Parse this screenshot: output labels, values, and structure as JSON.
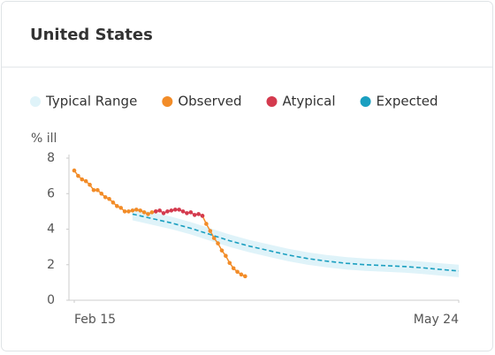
{
  "chart_data": {
    "type": "line",
    "title": "United States",
    "ylabel": "% ill",
    "ylim": [
      0,
      8.2
    ],
    "yticks": [
      0,
      2,
      4,
      6,
      8
    ],
    "xlim": [
      0,
      99
    ],
    "xticks": [
      {
        "value": 0,
        "label": "Feb 15"
      },
      {
        "value": 99,
        "label": "May 24"
      }
    ],
    "grid": false,
    "series": [
      {
        "name": "Typical Range",
        "color": "#dff3f9",
        "x": [
          15,
          20,
          25,
          30,
          35,
          40,
          45,
          50,
          55,
          60,
          65,
          70,
          75,
          80,
          85,
          90,
          95,
          99
        ],
        "high": [
          5.2,
          4.95,
          4.7,
          4.4,
          4.05,
          3.7,
          3.4,
          3.15,
          2.9,
          2.7,
          2.55,
          2.43,
          2.35,
          2.3,
          2.25,
          2.17,
          2.07,
          2.0
        ],
        "low": [
          4.5,
          4.25,
          4.0,
          3.7,
          3.35,
          3.0,
          2.7,
          2.45,
          2.2,
          2.0,
          1.85,
          1.73,
          1.65,
          1.6,
          1.55,
          1.47,
          1.37,
          1.3
        ]
      },
      {
        "name": "Observed",
        "color": "#f28c28",
        "x": [
          0,
          1,
          2,
          3,
          4,
          5,
          6,
          7,
          8,
          9,
          10,
          11,
          12,
          13,
          14,
          15,
          16,
          17,
          18,
          19,
          20,
          21,
          22,
          23,
          24,
          25,
          26,
          27,
          28,
          29,
          30,
          31,
          32,
          33,
          34,
          35,
          36,
          37,
          38,
          39,
          40,
          41,
          42,
          43,
          44
        ],
        "values": [
          7.3,
          7.0,
          6.8,
          6.7,
          6.5,
          6.2,
          6.2,
          6.0,
          5.8,
          5.7,
          5.5,
          5.3,
          5.2,
          5.0,
          5.0,
          5.05,
          5.1,
          5.05,
          4.95,
          4.85,
          4.95,
          5.0,
          null,
          null,
          null,
          null,
          null,
          null,
          null,
          null,
          null,
          null,
          null,
          4.75,
          4.3,
          3.9,
          3.5,
          3.2,
          2.8,
          2.5,
          2.1,
          1.8,
          1.6,
          1.45,
          1.35
        ]
      },
      {
        "name": "Atypical",
        "color": "#d43a4e",
        "x": [
          21,
          22,
          23,
          24,
          25,
          26,
          27,
          28,
          29,
          30,
          31,
          32,
          33
        ],
        "values": [
          5.0,
          5.05,
          4.9,
          5.0,
          5.05,
          5.1,
          5.1,
          5.0,
          4.9,
          4.95,
          4.8,
          4.85,
          4.75
        ]
      },
      {
        "name": "Expected",
        "color": "#1a9fc0",
        "dashed": true,
        "x": [
          15,
          20,
          25,
          30,
          35,
          40,
          45,
          50,
          55,
          60,
          65,
          70,
          75,
          80,
          85,
          90,
          95,
          99
        ],
        "values": [
          4.85,
          4.6,
          4.35,
          4.05,
          3.7,
          3.35,
          3.05,
          2.8,
          2.55,
          2.35,
          2.2,
          2.08,
          2.0,
          1.95,
          1.9,
          1.82,
          1.72,
          1.65
        ]
      }
    ]
  }
}
